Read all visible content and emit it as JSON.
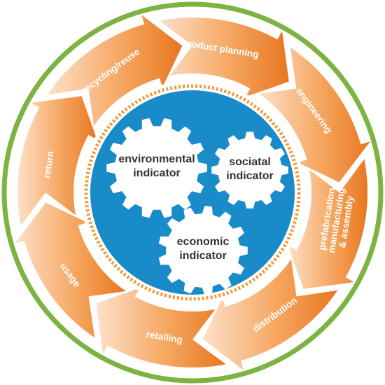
{
  "diagram": {
    "colors": {
      "outer_ring": "#7cb342",
      "arrow_dark": "#e8761e",
      "arrow_light": "#fde1c9",
      "center_blue": "#1a8bc9",
      "dotted_ring": "#f29a38",
      "gear_fill": "#ffffff",
      "gear_text": "#333333",
      "arrow_text": "#ffffff"
    },
    "stages": [
      {
        "id": "product-planning",
        "label": "product planning"
      },
      {
        "id": "engineering",
        "label": "engineering"
      },
      {
        "id": "prefabrication",
        "lines": [
          "prefabrication",
          "manufacturing",
          "& assembly"
        ]
      },
      {
        "id": "distribution",
        "label": "distribution"
      },
      {
        "id": "retailing",
        "label": "retailing"
      },
      {
        "id": "usage",
        "label": "usage"
      },
      {
        "id": "return",
        "label": "return"
      },
      {
        "id": "recycling-reuse",
        "label": "recycling/reuse"
      }
    ],
    "indicators": [
      {
        "id": "environmental",
        "lines": [
          "environmental",
          "indicator"
        ]
      },
      {
        "id": "sociatal",
        "lines": [
          "sociatal",
          "indicator"
        ]
      },
      {
        "id": "economic",
        "lines": [
          "economic",
          "indicator"
        ]
      }
    ]
  }
}
